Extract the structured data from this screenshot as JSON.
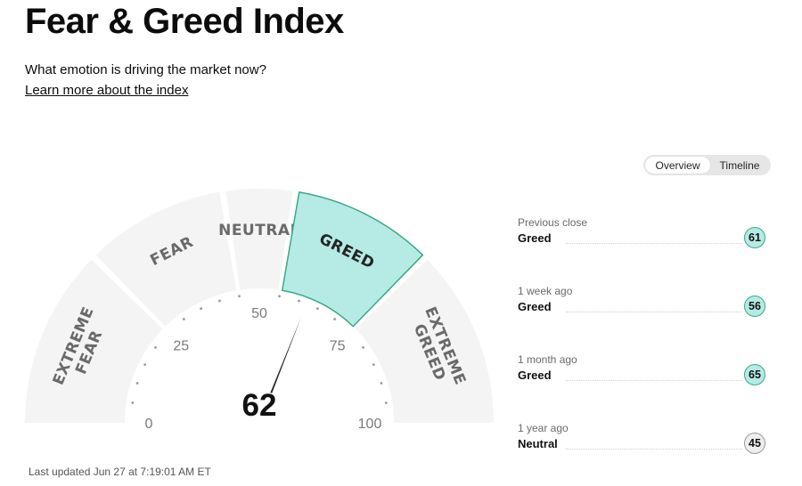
{
  "page": {
    "title": "Fear & Greed Index",
    "subtitle": "What emotion is driving the market now?",
    "learn_more": "Learn more about the index",
    "last_updated": "Last updated Jun 27 at 7:19:01 AM ET"
  },
  "toggle": {
    "options": [
      "Overview",
      "Timeline"
    ],
    "selected": "Overview"
  },
  "gauge": {
    "value": 62,
    "scale": {
      "min": 0,
      "max": 100
    },
    "segments": [
      {
        "label_lines": [
          "EXTREME",
          "FEAR"
        ],
        "from": 0,
        "to": 25
      },
      {
        "label_lines": [
          "FEAR"
        ],
        "from": 25,
        "to": 45
      },
      {
        "label_lines": [
          "NEUTRAL"
        ],
        "from": 45,
        "to": 55
      },
      {
        "label_lines": [
          "GREED"
        ],
        "from": 55,
        "to": 75
      },
      {
        "label_lines": [
          "EXTREME",
          "GREED"
        ],
        "from": 75,
        "to": 100
      }
    ],
    "active_segment": "GREED",
    "tick_labels": [
      "0",
      "25",
      "50",
      "75",
      "100"
    ],
    "colors": {
      "active_fill": "#b6ebe5",
      "active_stroke": "#3aa884",
      "inactive_fill": "#f4f4f4",
      "needle": "#2a2a2a"
    }
  },
  "history": [
    {
      "period": "Previous close",
      "rating": "Greed",
      "value": "61",
      "color": "#b6ebe5",
      "border": "#3aa884"
    },
    {
      "period": "1 week ago",
      "rating": "Greed",
      "value": "56",
      "color": "#b6ebe5",
      "border": "#3aa884"
    },
    {
      "period": "1 month ago",
      "rating": "Greed",
      "value": "65",
      "color": "#b6ebe5",
      "border": "#3aa884"
    },
    {
      "period": "1 year ago",
      "rating": "Neutral",
      "value": "45",
      "color": "#eeeeee",
      "border": "#9a9a9a"
    }
  ]
}
